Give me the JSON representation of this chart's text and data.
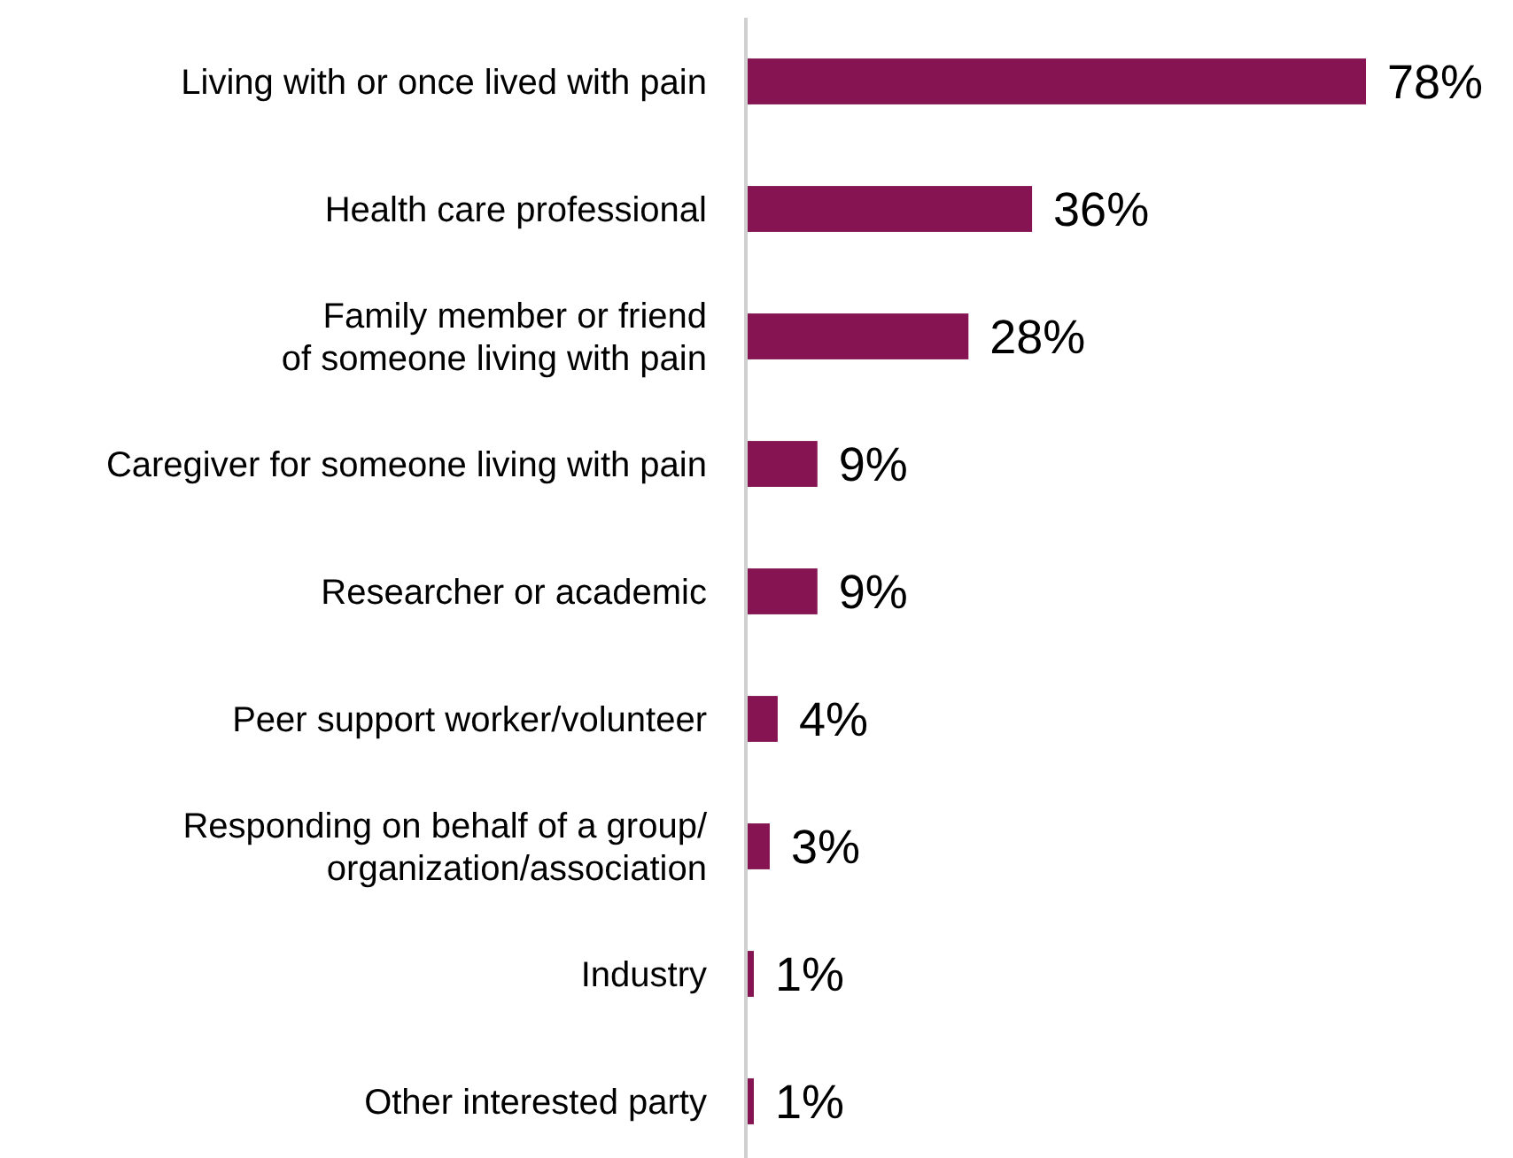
{
  "chart_data": {
    "type": "bar",
    "orientation": "horizontal",
    "categories": [
      "Living with or once lived with pain",
      "Health care professional",
      "Family member or friend\nof someone living with pain",
      "Caregiver for someone living with pain",
      "Researcher or academic",
      "Peer support worker/volunteer",
      "Responding on behalf of a group/\norganization/association",
      "Industry",
      "Other interested party"
    ],
    "values": [
      78,
      36,
      28,
      9,
      9,
      4,
      3,
      1,
      1
    ],
    "value_labels": [
      "78%",
      "36%",
      "28%",
      "9%",
      "9%",
      "4%",
      "3%",
      "1%",
      "1%"
    ],
    "color": "#861453"
  }
}
